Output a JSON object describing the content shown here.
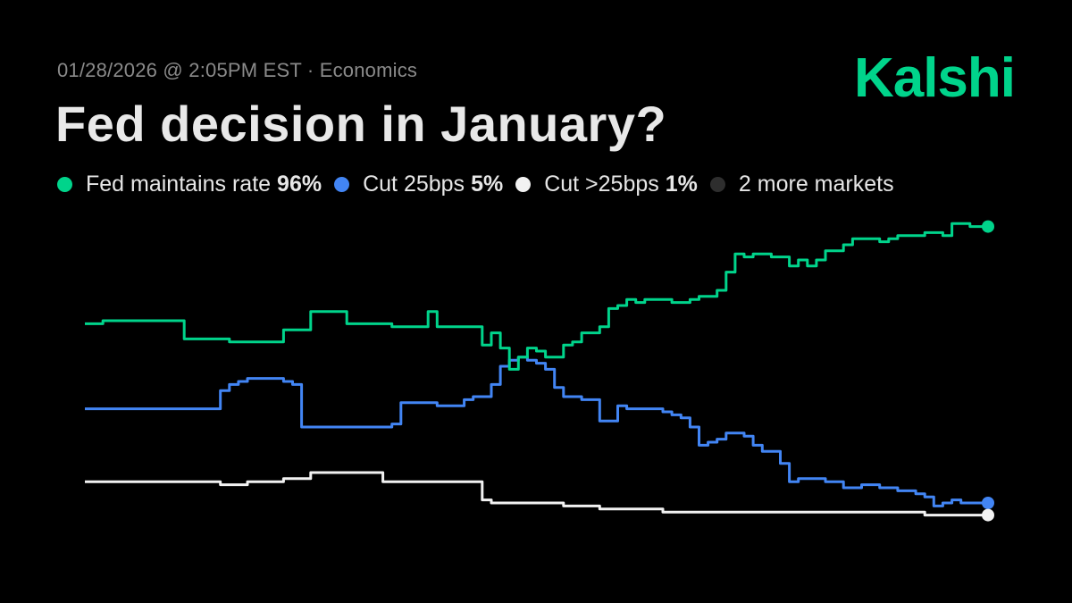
{
  "header": {
    "meta": "01/28/2026 @ 2:05PM EST · Economics",
    "logo": "Kalshi",
    "title": "Fed decision in January?"
  },
  "legend": {
    "items": [
      {
        "label": "Fed maintains rate",
        "value": "96%",
        "color": "#00d48b"
      },
      {
        "label": "Cut 25bps",
        "value": "5%",
        "color": "#4285f4"
      },
      {
        "label": "Cut >25bps",
        "value": "1%",
        "color": "#f2f2f2"
      }
    ],
    "more": {
      "label": "2 more markets",
      "color": "#2e2e2e"
    }
  },
  "chart_data": {
    "type": "line",
    "title": "Fed decision in January?",
    "xlabel": "",
    "ylabel": "",
    "x": [
      0,
      1,
      2,
      3,
      4,
      5,
      6,
      7,
      8,
      9,
      10,
      11,
      12,
      13,
      14,
      15,
      16,
      17,
      18,
      19,
      20,
      21,
      22,
      23,
      24,
      25,
      26,
      27,
      28,
      29,
      30,
      31,
      32,
      33,
      34,
      35,
      36,
      37,
      38,
      39,
      40,
      41,
      42,
      43,
      44,
      45,
      46,
      47,
      48,
      49,
      50,
      51,
      52,
      53,
      54,
      55,
      56,
      57,
      58,
      59,
      60,
      61,
      62,
      63,
      64,
      65,
      66,
      67,
      68,
      69,
      70,
      71,
      72,
      73,
      74,
      75,
      76,
      77,
      78,
      79,
      80,
      81,
      82,
      83,
      84,
      85,
      86,
      87,
      88,
      89,
      90,
      91,
      92,
      93,
      94,
      95,
      96,
      97,
      98,
      99,
      100
    ],
    "ylim": [
      0,
      100
    ],
    "grid": false,
    "series": [
      {
        "name": "Fed maintains rate",
        "color": "#00d48b",
        "final_label": "96%",
        "values": [
          64,
          64,
          65,
          65,
          65,
          65,
          65,
          65,
          65,
          65,
          65,
          59,
          59,
          59,
          59,
          59,
          58,
          58,
          58,
          58,
          58,
          58,
          62,
          62,
          62,
          68,
          68,
          68,
          68,
          64,
          64,
          64,
          64,
          64,
          63,
          63,
          63,
          63,
          68,
          63,
          63,
          63,
          63,
          63,
          57,
          61,
          56,
          49,
          53,
          56,
          55,
          53,
          53,
          57,
          58,
          61,
          61,
          63,
          69,
          70,
          72,
          71,
          72,
          72,
          72,
          71,
          71,
          72,
          73,
          73,
          75,
          81,
          87,
          86,
          87,
          87,
          86,
          86,
          83,
          85,
          83,
          85,
          88,
          88,
          90,
          92,
          92,
          92,
          91,
          92,
          93,
          93,
          93,
          94,
          94,
          93,
          97,
          97,
          96,
          96,
          96
        ]
      },
      {
        "name": "Cut 25bps",
        "color": "#4285f4",
        "final_label": "5%",
        "values": [
          36,
          36,
          36,
          36,
          36,
          36,
          36,
          36,
          36,
          36,
          36,
          36,
          36,
          36,
          36,
          42,
          44,
          45,
          46,
          46,
          46,
          46,
          45,
          44,
          30,
          30,
          30,
          30,
          30,
          30,
          30,
          30,
          30,
          30,
          31,
          38,
          38,
          38,
          38,
          37,
          37,
          37,
          39,
          40,
          40,
          44,
          50,
          52,
          53,
          52,
          51,
          49,
          43,
          40,
          40,
          39,
          39,
          32,
          32,
          37,
          36,
          36,
          36,
          36,
          35,
          34,
          33,
          30,
          24,
          25,
          26,
          28,
          28,
          27,
          24,
          22,
          22,
          18,
          12,
          13,
          13,
          13,
          12,
          12,
          10,
          10,
          11,
          11,
          10,
          10,
          9,
          9,
          8,
          7,
          4,
          5,
          6,
          5,
          5,
          5,
          5
        ]
      },
      {
        "name": "Cut >25bps",
        "color": "#f2f2f2",
        "final_label": "1%",
        "values": [
          12,
          12,
          12,
          12,
          12,
          12,
          12,
          12,
          12,
          12,
          12,
          12,
          12,
          12,
          12,
          11,
          11,
          11,
          12,
          12,
          12,
          12,
          13,
          13,
          13,
          15,
          15,
          15,
          15,
          15,
          15,
          15,
          15,
          12,
          12,
          12,
          12,
          12,
          12,
          12,
          12,
          12,
          12,
          12,
          6,
          5,
          5,
          5,
          5,
          5,
          5,
          5,
          5,
          4,
          4,
          4,
          4,
          3,
          3,
          3,
          3,
          3,
          3,
          3,
          2,
          2,
          2,
          2,
          2,
          2,
          2,
          2,
          2,
          2,
          2,
          2,
          2,
          2,
          2,
          2,
          2,
          2,
          2,
          2,
          2,
          2,
          2,
          2,
          2,
          2,
          2,
          2,
          2,
          1,
          1,
          1,
          1,
          1,
          1,
          1,
          1
        ]
      }
    ]
  }
}
